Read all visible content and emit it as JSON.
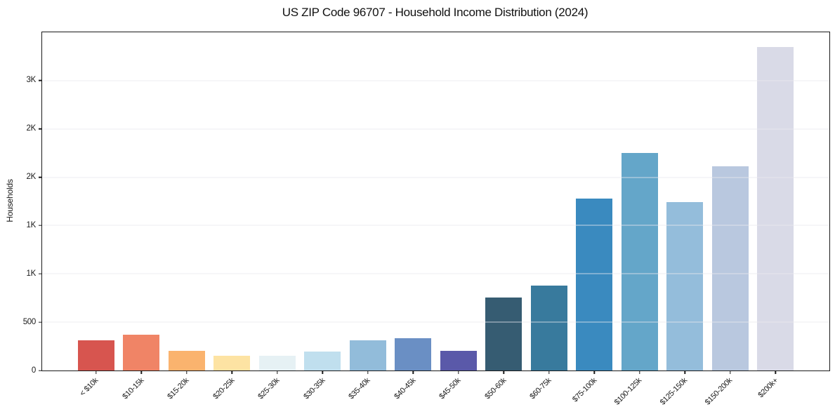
{
  "figure": {
    "background": "#ffffff"
  },
  "chart_data": {
    "type": "bar",
    "title": "US ZIP Code 96707 - Household Income Distribution (2024)",
    "xlabel": "",
    "ylabel": "Households",
    "categories": [
      "< $10k",
      "$10-15k",
      "$15-20k",
      "$20-25k",
      "$25-30k",
      "$30-35k",
      "$35-40k",
      "$40-45k",
      "$45-50k",
      "$50-60k",
      "$60-75k",
      "$75-100k",
      "$100-125k",
      "$125-150k",
      "$150-200k",
      "$200k+"
    ],
    "values": [
      310,
      370,
      200,
      155,
      150,
      195,
      315,
      335,
      200,
      755,
      880,
      1780,
      2250,
      1740,
      2110,
      3350
    ],
    "bar_colors": [
      "#d7554f",
      "#f08466",
      "#fab36e",
      "#fde3a3",
      "#e6f1f4",
      "#c0dfee",
      "#92bcda",
      "#6a8fc4",
      "#5a59a9",
      "#365c72",
      "#387a9d",
      "#3a8abf",
      "#64a6c9",
      "#94bddb",
      "#b9c8df",
      "#d9dae7"
    ],
    "ylim": [
      0,
      3500
    ],
    "yticks": [
      {
        "value": 0,
        "label": "0"
      },
      {
        "value": 500,
        "label": "500"
      },
      {
        "value": 1000,
        "label": "1K"
      },
      {
        "value": 1500,
        "label": "1K"
      },
      {
        "value": 2000,
        "label": "2K"
      },
      {
        "value": 2500,
        "label": "2K"
      },
      {
        "value": 3000,
        "label": "3K"
      }
    ],
    "grid": "horizontal",
    "legend": "none",
    "x_tick_label_rotation_deg": 45,
    "axis_color": "#1a1a1a",
    "grid_color": "#e9e9ed"
  }
}
